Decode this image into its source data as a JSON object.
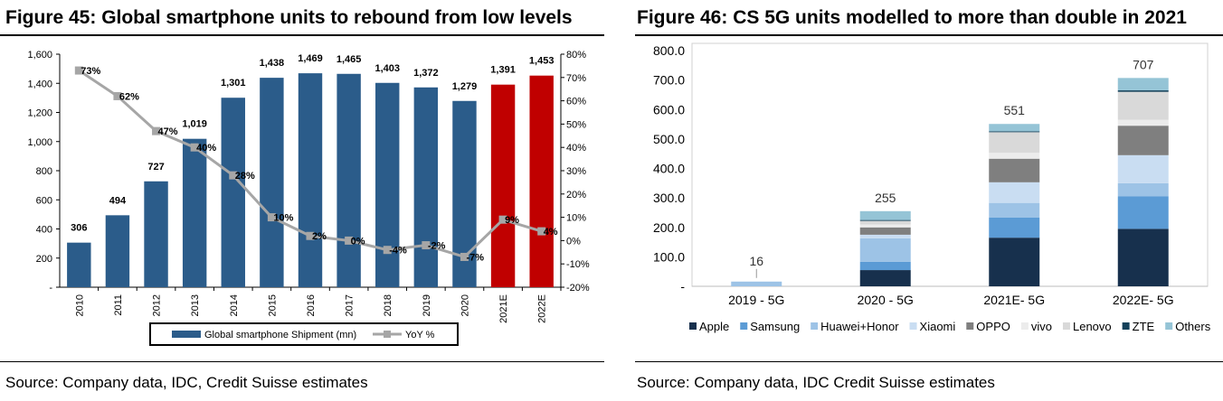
{
  "left": {
    "title": "Figure 45: Global smartphone units to rebound from low levels",
    "source": "Source: Company data, IDC, Credit Suisse estimates"
  },
  "right": {
    "title": "Figure 46: CS 5G units modelled to more than double in 2021",
    "source": "Source: Company data, IDC Credit Suisse estimates"
  },
  "chart_data": [
    {
      "type": "bar",
      "title": "Figure 45: Global smartphone units to rebound from low levels",
      "categories": [
        "2010",
        "2011",
        "2012",
        "2013",
        "2014",
        "2015",
        "2016",
        "2017",
        "2018",
        "2019",
        "2020",
        "2021E",
        "2022E"
      ],
      "series": [
        {
          "name": "Global smartphone Shipment (mn)",
          "type": "bar",
          "axis": "left",
          "values": [
            306,
            494,
            727,
            1019,
            1301,
            1438,
            1469,
            1465,
            1403,
            1372,
            1279,
            1391,
            1453
          ],
          "value_labels": [
            "306",
            "494",
            "727",
            "1,019",
            "1,301",
            "1,438",
            "1,469",
            "1,465",
            "1,403",
            "1,372",
            "1,279",
            "1,391",
            "1,453"
          ],
          "color": "#2b5c8a",
          "forecast_color": "#c00000",
          "forecast_from_index": 11
        },
        {
          "name": "YoY %",
          "type": "line",
          "axis": "right",
          "values": [
            73,
            62,
            47,
            40,
            28,
            10,
            2,
            0,
            -4,
            -2,
            -7,
            9,
            4
          ],
          "value_labels": [
            "73%",
            "62%",
            "47%",
            "40%",
            "28%",
            "10%",
            "2%",
            "0%",
            "-4%",
            "-2%",
            "-7%",
            "9%",
            "4%"
          ],
          "color": "#a6a6a6"
        }
      ],
      "ylim": [
        0,
        1600
      ],
      "yticks": [
        "-",
        "200",
        "400",
        "600",
        "800",
        "1,000",
        "1,200",
        "1,400",
        "1,600"
      ],
      "y2lim": [
        -20,
        80
      ],
      "y2ticks": [
        "-20%",
        "-10%",
        "0%",
        "10%",
        "20%",
        "30%",
        "40%",
        "50%",
        "60%",
        "70%",
        "80%"
      ],
      "legend_position": "bottom",
      "grid": false
    },
    {
      "type": "bar",
      "stacked": true,
      "title": "Figure 46: CS 5G units modelled to more than double in 2021",
      "categories": [
        "2019 - 5G",
        "2020 - 5G",
        "2021E- 5G",
        "2022E- 5G"
      ],
      "totals": [
        "16",
        "255",
        "551",
        "707"
      ],
      "series": [
        {
          "name": "Apple",
          "color": "#17304d",
          "values": [
            0,
            55,
            165,
            195
          ]
        },
        {
          "name": "Samsung",
          "color": "#5b9bd5",
          "values": [
            0,
            28,
            68,
            110
          ]
        },
        {
          "name": "Huawei+Honor",
          "color": "#9dc3e6",
          "values": [
            16,
            80,
            50,
            45
          ]
        },
        {
          "name": "Xiaomi",
          "color": "#c9ddf2",
          "values": [
            0,
            12,
            70,
            95
          ]
        },
        {
          "name": "OPPO",
          "color": "#7f7f7f",
          "values": [
            0,
            25,
            80,
            100
          ]
        },
        {
          "name": "vivo",
          "color": "#ececec",
          "values": [
            0,
            10,
            20,
            20
          ]
        },
        {
          "name": "Lenovo",
          "color": "#d9d9d9",
          "values": [
            0,
            12,
            70,
            95
          ]
        },
        {
          "name": "ZTE",
          "color": "#14415a",
          "values": [
            0,
            3,
            3,
            5
          ]
        },
        {
          "name": "Others",
          "color": "#95c4d6",
          "values": [
            0,
            30,
            25,
            42
          ]
        }
      ],
      "ylim": [
        0,
        800
      ],
      "yticks": [
        "-",
        "100.0",
        "200.0",
        "300.0",
        "400.0",
        "500.0",
        "600.0",
        "700.0",
        "800.0"
      ],
      "legend_position": "bottom",
      "grid": false
    }
  ]
}
